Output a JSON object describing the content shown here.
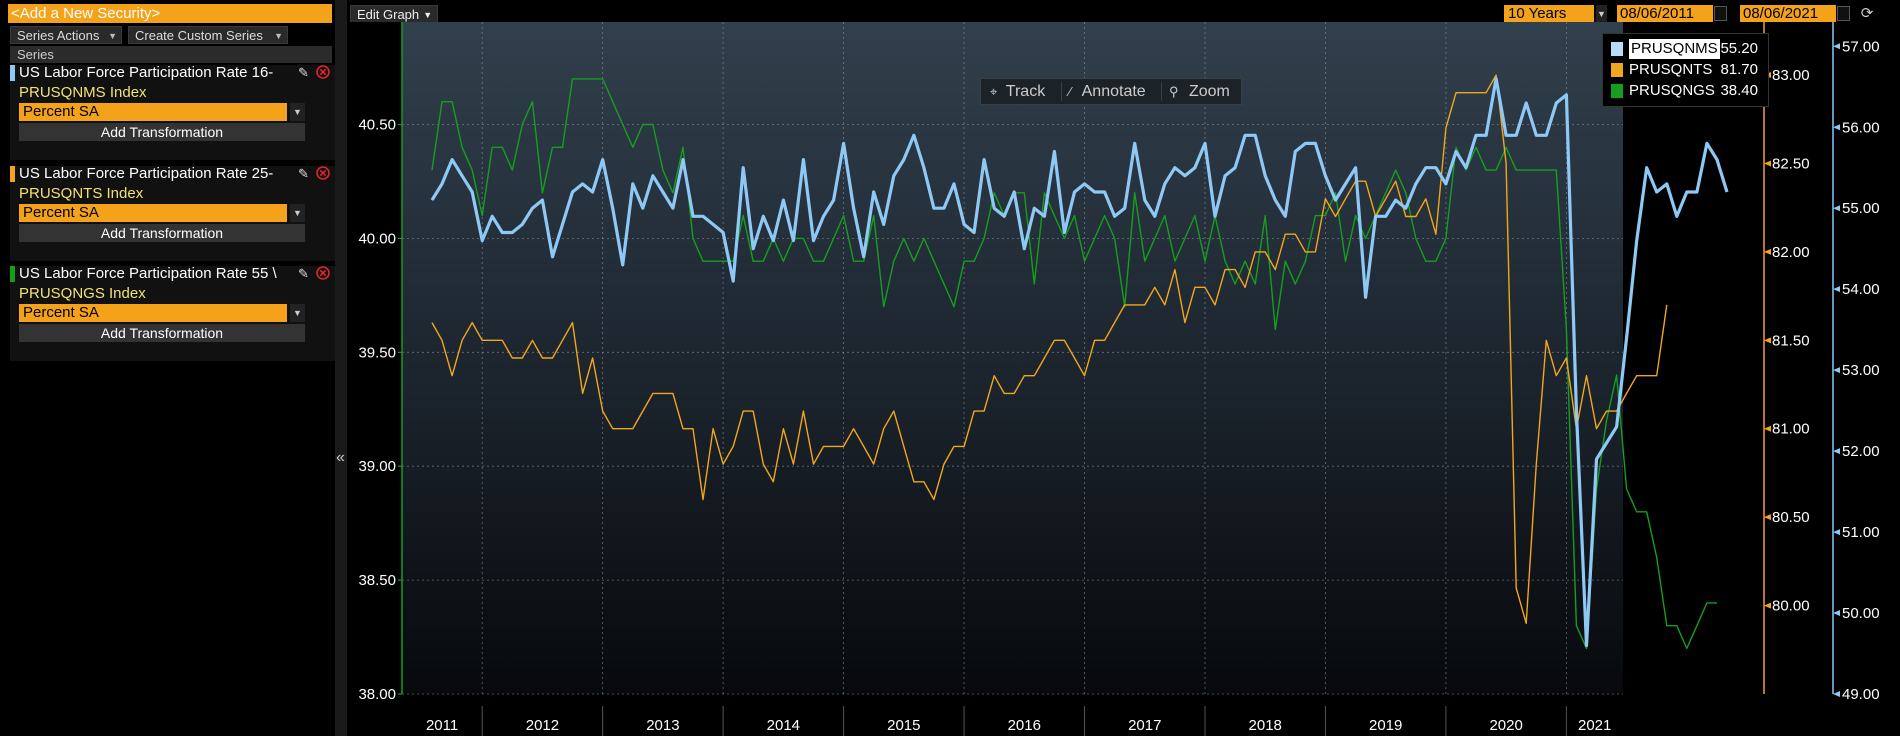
{
  "left_panel": {
    "add_security_placeholder": "<Add a New Security>",
    "series_actions_label": "Series Actions",
    "create_custom_label": "Create Custom Series",
    "series_header": "Series",
    "series": [
      {
        "name": "US Labor Force Participation Rate 16-",
        "ticker": "PRUSQNMS Index",
        "transformation": "Percent SA",
        "add_transformation": "Add Transformation",
        "color": "#8ec8f5"
      },
      {
        "name": "US Labor Force Participation Rate 25-",
        "ticker": "PRUSQNTS Index",
        "transformation": "Percent SA",
        "add_transformation": "Add Transformation",
        "color": "#f2a61d"
      },
      {
        "name": "US Labor Force Participation Rate 55 \\",
        "ticker": "PRUSQNGS Index",
        "transformation": "Percent SA",
        "add_transformation": "Add Transformation",
        "color": "#169e1f"
      }
    ]
  },
  "top_bar": {
    "edit_graph_label": "Edit Graph",
    "range_label": "10 Years",
    "start_date": "08/06/2011",
    "end_date": "08/06/2021"
  },
  "toolbar": {
    "track": "Track",
    "annotate": "Annotate",
    "zoom": "Zoom"
  },
  "legend": [
    {
      "name": "PRUSQNMS",
      "value": "55.20",
      "color": "#b8dcfa"
    },
    {
      "name": "PRUSQNTS",
      "value": "81.70",
      "color": "#f2a61d"
    },
    {
      "name": "PRUSQNGS",
      "value": "38.40",
      "color": "#169e1f"
    }
  ],
  "chart_data": {
    "type": "line",
    "x_start": "2011-08",
    "x_end": "2021-07",
    "x_tick_labels": [
      "2011",
      "2012",
      "2013",
      "2014",
      "2015",
      "2016",
      "2017",
      "2018",
      "2019",
      "2020",
      "2021"
    ],
    "grid": true,
    "legend_position": "top-right",
    "axes": {
      "left": {
        "min": 38.0,
        "max": 40.95,
        "ticks": [
          "38.00",
          "38.50",
          "39.00",
          "39.50",
          "40.00",
          "40.50"
        ],
        "color": "#169e1f"
      },
      "right1": {
        "min": 79.5,
        "max": 83.3,
        "ticks": [
          "80.00",
          "80.50",
          "81.00",
          "81.50",
          "82.00",
          "82.50",
          "83.00"
        ],
        "color": "#f2a61d"
      },
      "right2": {
        "min": 49.0,
        "max": 57.3,
        "ticks": [
          "49.00",
          "50.00",
          "51.00",
          "52.00",
          "53.00",
          "54.00",
          "55.00",
          "56.00",
          "57.00"
        ],
        "color": "#8ec8f5"
      }
    },
    "series": [
      {
        "name": "PRUSQNMS",
        "axis": "right2",
        "color": "#8ec8f5",
        "values": [
          55.1,
          55.3,
          55.6,
          55.4,
          55.2,
          54.6,
          54.9,
          54.7,
          54.7,
          54.8,
          55.0,
          55.1,
          54.4,
          54.8,
          55.2,
          55.3,
          55.2,
          55.6,
          55.0,
          54.3,
          55.3,
          55.0,
          55.4,
          55.2,
          55.0,
          55.6,
          54.9,
          54.9,
          54.8,
          54.7,
          54.1,
          55.5,
          54.5,
          54.9,
          54.6,
          55.1,
          54.6,
          55.6,
          54.6,
          54.9,
          55.1,
          55.8,
          55.0,
          54.4,
          55.2,
          54.8,
          55.4,
          55.6,
          55.9,
          55.5,
          55.0,
          55.0,
          55.3,
          54.8,
          54.7,
          55.6,
          55.0,
          54.9,
          55.2,
          54.5,
          55.0,
          54.9,
          55.7,
          54.7,
          55.2,
          55.3,
          55.2,
          55.2,
          54.9,
          55.0,
          55.8,
          55.1,
          54.9,
          55.3,
          55.5,
          55.4,
          55.5,
          55.8,
          54.9,
          55.4,
          55.5,
          55.9,
          55.9,
          55.4,
          55.1,
          54.9,
          55.7,
          55.8,
          55.8,
          55.4,
          55.1,
          55.3,
          55.5,
          53.9,
          54.9,
          54.9,
          55.1,
          55.0,
          55.3,
          55.5,
          55.5,
          55.3,
          55.7,
          55.5,
          55.9,
          55.9,
          56.6,
          55.9,
          55.9,
          56.3,
          55.9,
          55.9,
          56.3,
          56.4,
          52.5,
          49.6,
          51.9,
          52.1,
          52.3,
          53.4,
          54.6,
          55.5,
          55.2,
          55.3,
          54.9,
          55.2,
          55.2,
          55.8,
          55.6,
          55.2
        ]
      },
      {
        "name": "PRUSQNTS",
        "axis": "right1",
        "color": "#f2a61d",
        "values": [
          81.6,
          81.5,
          81.3,
          81.5,
          81.6,
          81.5,
          81.5,
          81.5,
          81.4,
          81.4,
          81.5,
          81.4,
          81.4,
          81.5,
          81.6,
          81.2,
          81.4,
          81.1,
          81.0,
          81.0,
          81.0,
          81.1,
          81.2,
          81.2,
          81.2,
          81.0,
          81.0,
          80.6,
          81.0,
          80.8,
          80.9,
          81.1,
          81.1,
          80.8,
          80.7,
          81.0,
          80.8,
          81.1,
          80.8,
          80.9,
          80.9,
          80.9,
          81.0,
          80.9,
          80.8,
          81.0,
          81.1,
          80.9,
          80.7,
          80.7,
          80.6,
          80.8,
          80.9,
          80.9,
          81.1,
          81.1,
          81.3,
          81.2,
          81.2,
          81.3,
          81.3,
          81.4,
          81.5,
          81.5,
          81.4,
          81.3,
          81.5,
          81.5,
          81.6,
          81.7,
          81.7,
          81.7,
          81.8,
          81.7,
          81.9,
          81.6,
          81.8,
          81.8,
          81.7,
          81.9,
          81.9,
          81.8,
          82.0,
          82.0,
          81.9,
          82.1,
          82.1,
          82.0,
          82.0,
          82.3,
          82.2,
          82.3,
          82.4,
          82.4,
          82.2,
          82.3,
          82.4,
          82.2,
          82.2,
          82.3,
          82.1,
          82.7,
          82.9,
          82.9,
          82.9,
          82.9,
          83.0,
          82.5,
          80.1,
          79.9,
          80.8,
          81.5,
          81.3,
          81.4,
          81.0,
          81.3,
          81.0,
          81.1,
          81.1,
          81.2,
          81.3,
          81.3,
          81.3,
          81.7
        ]
      },
      {
        "name": "PRUSQNGS",
        "axis": "left",
        "color": "#169e1f",
        "values": [
          40.3,
          40.6,
          40.6,
          40.4,
          40.3,
          40.1,
          40.4,
          40.4,
          40.3,
          40.5,
          40.6,
          40.2,
          40.4,
          40.4,
          40.7,
          40.7,
          40.7,
          40.7,
          40.6,
          40.5,
          40.4,
          40.5,
          40.5,
          40.3,
          40.2,
          40.4,
          40.0,
          39.9,
          39.9,
          39.9,
          39.9,
          40.1,
          39.9,
          39.9,
          40.0,
          39.9,
          40.0,
          40.0,
          39.9,
          39.9,
          40.0,
          40.1,
          39.9,
          39.9,
          40.1,
          39.7,
          39.9,
          40.0,
          39.9,
          40.0,
          39.9,
          39.8,
          39.7,
          39.9,
          39.9,
          40.0,
          40.2,
          40.1,
          40.2,
          40.2,
          39.8,
          40.2,
          40.1,
          40.0,
          40.1,
          39.9,
          40.0,
          40.1,
          40.0,
          39.7,
          40.2,
          39.9,
          40.0,
          40.1,
          39.9,
          40.0,
          40.1,
          39.9,
          40.1,
          39.9,
          39.8,
          39.9,
          39.8,
          40.1,
          39.6,
          39.9,
          39.8,
          39.9,
          40.1,
          40.1,
          40.2,
          39.9,
          40.1,
          40.0,
          40.1,
          40.2,
          40.3,
          40.2,
          40.0,
          39.9,
          39.9,
          40.0,
          40.4,
          40.3,
          40.4,
          40.3,
          40.3,
          40.4,
          40.3,
          40.3,
          40.3,
          40.3,
          40.3,
          39.6,
          38.3,
          38.2,
          38.9,
          39.2,
          39.4,
          38.9,
          38.8,
          38.8,
          38.6,
          38.3,
          38.3,
          38.2,
          38.3,
          38.4,
          38.4
        ]
      }
    ]
  }
}
